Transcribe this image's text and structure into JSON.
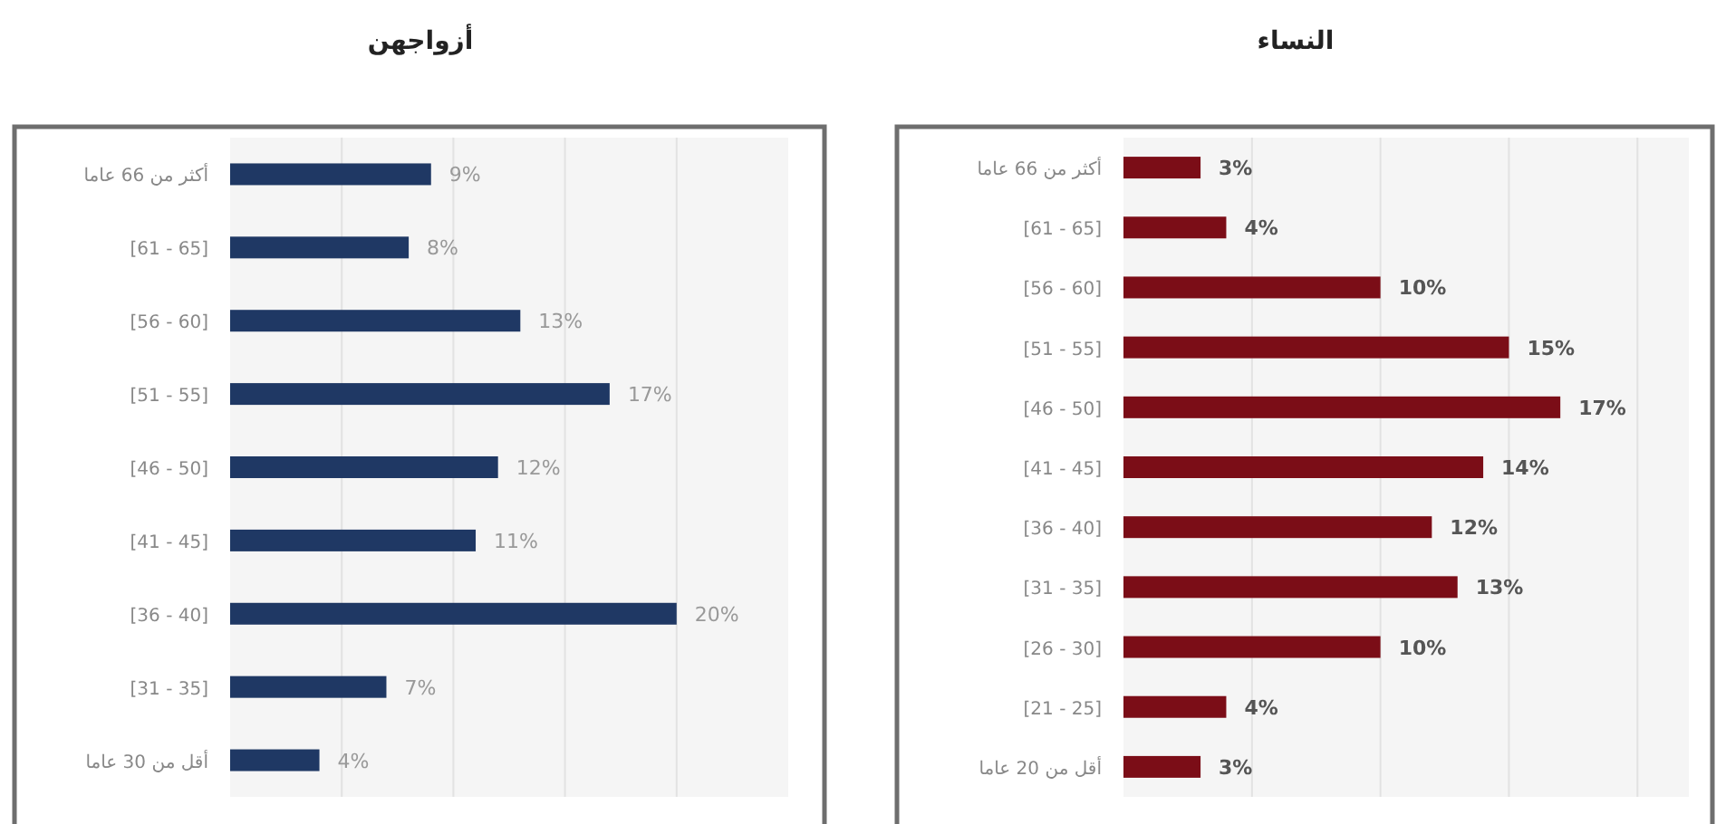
{
  "chart_data": [
    {
      "type": "bar",
      "orientation": "horizontal",
      "title": "أزواجهن",
      "categories": [
        "أكثر من 66 عاما",
        "[61 - 65]",
        "[56 - 60]",
        "[51 - 55]",
        "[46 - 50]",
        "[41 - 45]",
        "[36 - 40]",
        "[31 - 35]",
        "أقل من 30 عاما"
      ],
      "series": [
        {
          "color": "#1f3864",
          "values": [
            9,
            8,
            13,
            17,
            12,
            11,
            20,
            7,
            4
          ],
          "value_labels": [
            "9%",
            "8%",
            "13%",
            "17%",
            "12%",
            "11%",
            "20%",
            "7%",
            "4%"
          ]
        }
      ],
      "xlim": [
        0,
        25
      ],
      "xticks": [
        {
          "value": 5,
          "label": null
        },
        {
          "value": 10,
          "label": null
        },
        {
          "value": 15,
          "label": null
        },
        {
          "value": 20,
          "label": null
        }
      ],
      "grid": "x",
      "tick_labels": "y"
    },
    {
      "type": "bar",
      "orientation": "horizontal",
      "title": "النساء",
      "categories": [
        "أكثر من 66 عاما",
        "[61 - 65]",
        "[56 - 60]",
        "[51 - 55]",
        "[46 - 50]",
        "[41 - 45]",
        "[36 - 40]",
        "[31 - 35]",
        "[26 - 30]",
        "[21 - 25]",
        "أقل من 20 عاما"
      ],
      "series": [
        {
          "color": "#7b0d17",
          "values": [
            3,
            4,
            10,
            15,
            17,
            14,
            12,
            13,
            10,
            4,
            3
          ],
          "value_labels": [
            "3%",
            "4%",
            "10%",
            "15%",
            "17%",
            "14%",
            "12%",
            "13%",
            "10%",
            "4%",
            "3%"
          ]
        }
      ],
      "xlim": [
        0,
        22
      ],
      "xticks": [
        {
          "value": 5,
          "label": null
        },
        {
          "value": 10,
          "label": null
        },
        {
          "value": 15,
          "label": null
        },
        {
          "value": 20,
          "label": null
        }
      ],
      "grid": "x",
      "tick_labels": "y"
    }
  ]
}
